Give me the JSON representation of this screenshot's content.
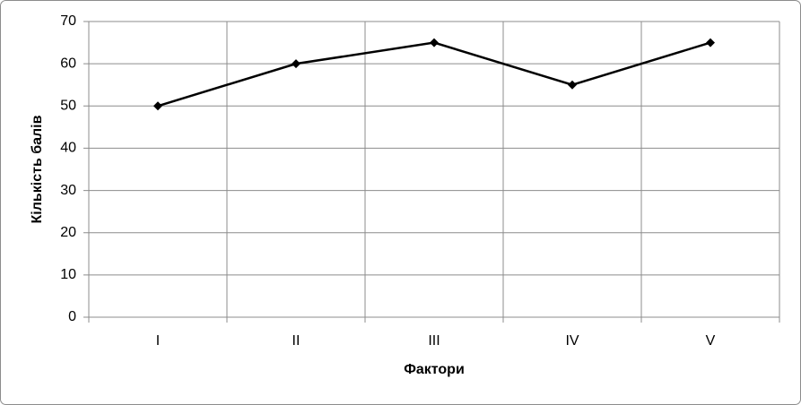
{
  "chart_data": {
    "type": "line",
    "categories": [
      "I",
      "II",
      "III",
      "IV",
      "V"
    ],
    "values": [
      50,
      60,
      65,
      55,
      65
    ],
    "color": "#000000",
    "x_label": "Фактори",
    "y_label": "Кількість балів",
    "ylim": [
      0,
      70
    ],
    "yticks": [
      0,
      10,
      20,
      30,
      40,
      50,
      60,
      70
    ],
    "grid": true
  }
}
